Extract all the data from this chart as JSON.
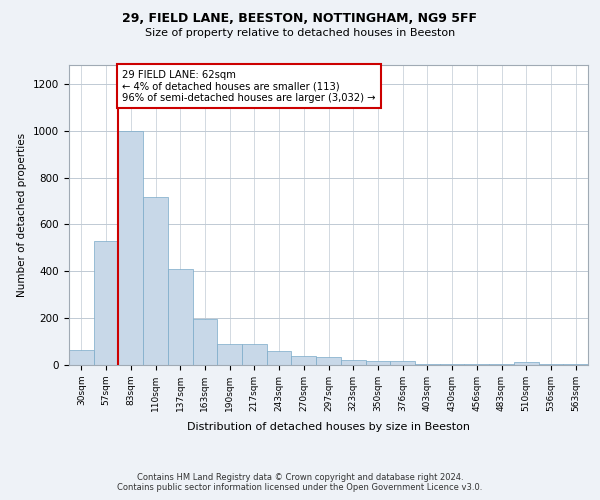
{
  "title1": "29, FIELD LANE, BEESTON, NOTTINGHAM, NG9 5FF",
  "title2": "Size of property relative to detached houses in Beeston",
  "xlabel": "Distribution of detached houses by size in Beeston",
  "ylabel": "Number of detached properties",
  "footer1": "Contains HM Land Registry data © Crown copyright and database right 2024.",
  "footer2": "Contains public sector information licensed under the Open Government Licence v3.0.",
  "annotation_line1": "29 FIELD LANE: 62sqm",
  "annotation_line2": "← 4% of detached houses are smaller (113)",
  "annotation_line3": "96% of semi-detached houses are larger (3,032) →",
  "bar_color": "#c8d8e8",
  "bar_edge_color": "#7aaac8",
  "highlight_color": "#cc0000",
  "background_color": "#eef2f7",
  "plot_bg_color": "#ffffff",
  "categories": [
    "30sqm",
    "57sqm",
    "83sqm",
    "110sqm",
    "137sqm",
    "163sqm",
    "190sqm",
    "217sqm",
    "243sqm",
    "270sqm",
    "297sqm",
    "323sqm",
    "350sqm",
    "376sqm",
    "403sqm",
    "430sqm",
    "456sqm",
    "483sqm",
    "510sqm",
    "536sqm",
    "563sqm"
  ],
  "values": [
    65,
    527,
    1000,
    715,
    410,
    198,
    88,
    88,
    58,
    40,
    33,
    20,
    18,
    18,
    5,
    5,
    5,
    5,
    12,
    5,
    5
  ],
  "highlight_bar_index": 1,
  "ylim": [
    0,
    1280
  ],
  "yticks": [
    0,
    200,
    400,
    600,
    800,
    1000,
    1200
  ],
  "red_line_x": 1.5
}
